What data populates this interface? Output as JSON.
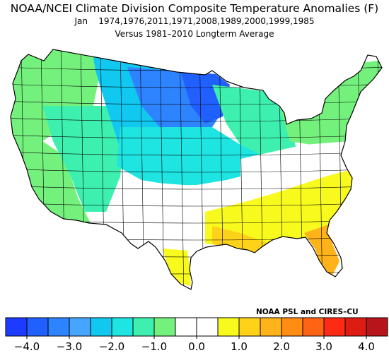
{
  "title": "NOAA/NCEI Climate Division Composite Temperature Anomalies (F)",
  "subtitle": "Jan    1974,1976,2011,1971,2008,1989,2000,1999,1985",
  "baseline": "Versus 1981–2010 Longterm Average",
  "credit": "NOAA PSL and CIRES–CU",
  "colorbar": {
    "colors": [
      "#1d3bff",
      "#1f60ff",
      "#2e84ff",
      "#46a6ff",
      "#10c8f0",
      "#1ee4e2",
      "#3ef0b0",
      "#74f07c",
      "#ffffff",
      "#ffffff",
      "#f8fa1e",
      "#ffd21a",
      "#ffb31a",
      "#ff8d14",
      "#ff6414",
      "#ff2a14",
      "#dd1c14",
      "#b8141c"
    ],
    "tick_labels": [
      "−4.0",
      "−3.0",
      "−2.0",
      "−1.0",
      "0.0",
      "1.0",
      "2.0",
      "3.0",
      "4.0"
    ]
  },
  "map_regions": [
    {
      "name": "pacific-northwest",
      "color": "#74f07c"
    },
    {
      "name": "california-coast",
      "color": "#74f07c"
    },
    {
      "name": "great-basin",
      "color": "#3ef0b0"
    },
    {
      "name": "northern-rockies",
      "color": "#10c8f0"
    },
    {
      "name": "upper-midwest",
      "color": "#2e84ff"
    },
    {
      "name": "minnesota-core",
      "color": "#1f60ff"
    },
    {
      "name": "central-plains",
      "color": "#1ee4e2"
    },
    {
      "name": "great-lakes",
      "color": "#3ef0b0"
    },
    {
      "name": "northeast",
      "color": "#74f07c"
    },
    {
      "name": "ohio-valley",
      "color": "#ffffff"
    },
    {
      "name": "southern-plains",
      "color": "#ffffff"
    },
    {
      "name": "southeast",
      "color": "#f8fa1e"
    },
    {
      "name": "gulf-coast",
      "color": "#ffd21a"
    },
    {
      "name": "florida",
      "color": "#ffb31a"
    },
    {
      "name": "south-texas",
      "color": "#f8fa1e"
    }
  ]
}
